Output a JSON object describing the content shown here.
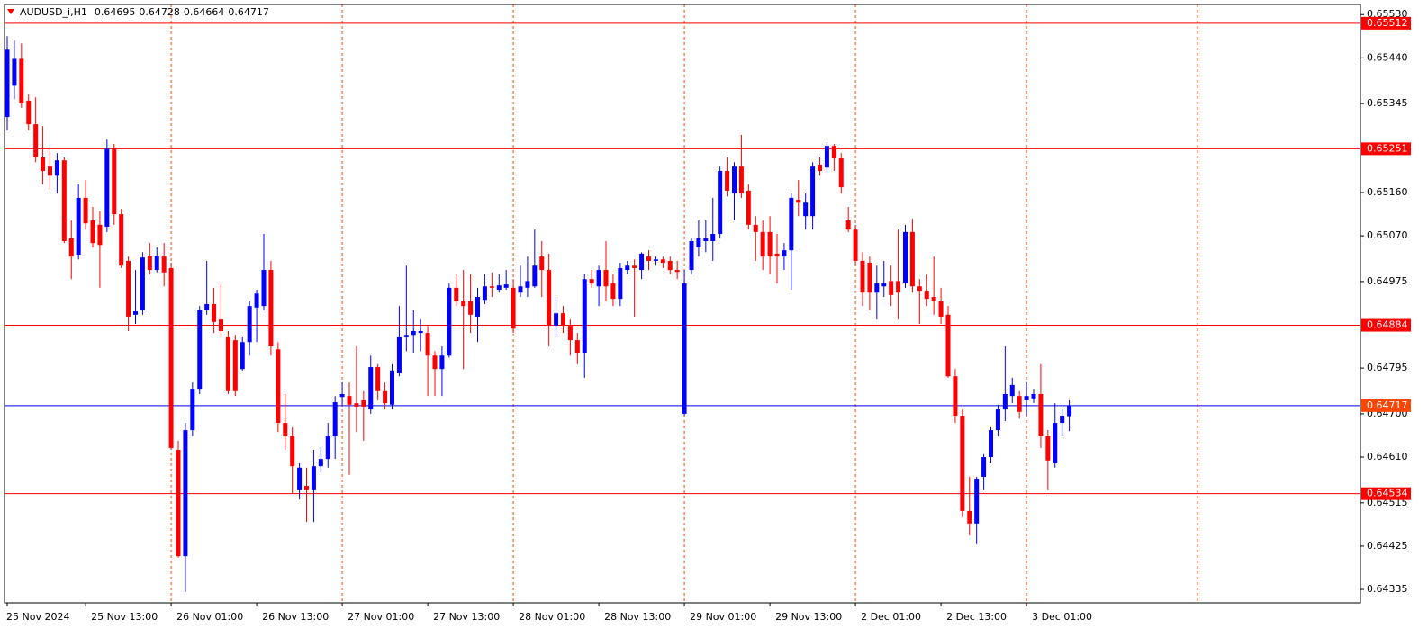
{
  "chart_data": {
    "type": "candlestick",
    "title": "AUDUSD_i,H1",
    "up_color": "#0000ff",
    "down_color": "#ff0000",
    "vgrid_color": "#ff4500",
    "categories": [
      "25 Nov 2024",
      null,
      null,
      null,
      null,
      null,
      null,
      null,
      null,
      null,
      null,
      "25 Nov 13:00",
      null,
      null,
      null,
      null,
      null,
      null,
      null,
      null,
      null,
      null,
      null,
      "26 Nov 01:00",
      null,
      null,
      null,
      null,
      null,
      null,
      null,
      null,
      null,
      null,
      null,
      "26 Nov 13:00",
      null,
      null,
      null,
      null,
      null,
      null,
      null,
      null,
      null,
      null,
      null,
      "27 Nov 01:00",
      null,
      null,
      null,
      null,
      null,
      null,
      null,
      null,
      null,
      null,
      null,
      "27 Nov 13:00",
      null,
      null,
      null,
      null,
      null,
      null,
      null,
      null,
      null,
      null,
      null,
      "28 Nov 01:00",
      null,
      null,
      null,
      null,
      null,
      null,
      null,
      null,
      null,
      null,
      null,
      "28 Nov 13:00",
      null,
      null,
      null,
      null,
      null,
      null,
      null,
      null,
      null,
      null,
      null,
      "29 Nov 01:00",
      null,
      null,
      null,
      null,
      null,
      null,
      null,
      null,
      null,
      null,
      null,
      "29 Nov 13:00",
      null,
      null,
      null,
      null,
      null,
      null,
      null,
      null,
      null,
      null,
      null,
      "2 Dec 01:00",
      null,
      null,
      null,
      null,
      null,
      null,
      null,
      null,
      null,
      null,
      null,
      "2 Dec 13:00",
      null,
      null,
      null,
      null,
      null,
      null,
      null,
      null,
      null,
      null,
      null,
      "3 Dec 01:00",
      null,
      null,
      null,
      null,
      null,
      null
    ],
    "open": [
      0.65317,
      0.65382,
      0.65438,
      0.65351,
      0.65302,
      0.65233,
      0.65214,
      0.65195,
      0.65227,
      0.65065,
      0.65031,
      0.65149,
      0.65102,
      0.65093,
      0.65089,
      0.65251,
      0.65115,
      0.65018,
      0.64906,
      0.64915,
      0.65029,
      0.64999,
      0.65027,
      0.65003,
      0.64625,
      0.64404,
      0.64666,
      0.64752,
      0.64915,
      0.64928,
      0.64896,
      0.64859,
      0.64853,
      0.64793,
      0.64849,
      0.64921,
      0.64924,
      0.64999,
      0.64834,
      0.64681,
      0.64653,
      0.64541,
      0.6455,
      0.64541,
      0.64591,
      0.64606,
      0.64653,
      0.64735,
      0.64737,
      0.64722,
      0.64728,
      0.64709,
      0.64797,
      0.64747,
      0.64719,
      0.64784,
      0.64859,
      0.64864,
      0.64868,
      0.64868,
      0.64821,
      0.64793,
      0.64821,
      0.64962,
      0.64934,
      0.64934,
      0.64902,
      0.64937,
      0.64965,
      0.64958,
      0.64962,
      0.64962,
      0.64952,
      0.64962,
      0.64965,
      0.65027,
      0.64999,
      0.64883,
      0.64909,
      0.64883,
      0.64853,
      0.64827,
      0.6498,
      0.64965,
      0.64999,
      0.64971,
      0.64939,
      0.64999,
      0.65008,
      0.64999,
      0.65027,
      0.65018,
      0.65021,
      0.65018,
      0.64999,
      0.647,
      0.64999,
      0.65046,
      0.65059,
      0.65059,
      0.65074,
      0.65205,
      0.65158,
      0.65214,
      0.65164,
      0.65093,
      0.65078,
      0.65078,
      0.65033,
      0.65027,
      0.6504,
      0.65145,
      0.65111,
      0.65111,
      0.65218,
      0.65212,
      0.65257,
      0.65231,
      0.65102,
      0.65083,
      0.65018,
      0.65014,
      0.64952,
      0.64965,
      0.64976,
      0.64976,
      0.64971,
      0.65078,
      0.64965,
      0.64956,
      0.64943,
      0.64934,
      0.64906,
      0.64778,
      0.64696,
      0.64498,
      0.64472,
      0.64569,
      0.6461,
      0.64666,
      0.64709,
      0.64737,
      0.64737,
      0.64728,
      0.64732,
      0.64741,
      0.64653,
      0.64597,
      0.64681,
      0.64695
    ],
    "high": [
      0.65485,
      0.65476,
      0.6547,
      0.65364,
      0.65358,
      0.65298,
      0.65251,
      0.65242,
      0.65233,
      0.65102,
      0.65177,
      0.65186,
      0.6513,
      0.65121,
      0.6527,
      0.65261,
      0.65126,
      0.65027,
      0.64999,
      0.65036,
      0.65055,
      0.65046,
      0.65055,
      0.65014,
      0.64644,
      0.64681,
      0.64765,
      0.64924,
      0.65018,
      0.64962,
      0.64971,
      0.64872,
      0.64864,
      0.64859,
      0.64934,
      0.64958,
      0.65074,
      0.65018,
      0.64849,
      0.64741,
      0.64672,
      0.64597,
      0.64588,
      0.64625,
      0.64631,
      0.64681,
      0.64737,
      0.64765,
      0.64765,
      0.6484,
      0.64747,
      0.64821,
      0.64803,
      0.64765,
      0.64803,
      0.64924,
      0.65008,
      0.64915,
      0.64896,
      0.64883,
      0.6483,
      0.6484,
      0.64971,
      0.6499,
      0.64999,
      0.6499,
      0.64962,
      0.6499,
      0.64994,
      0.6499,
      0.64999,
      0.6498,
      0.65008,
      0.65027,
      0.65083,
      0.65059,
      0.65033,
      0.64943,
      0.64924,
      0.64896,
      0.64868,
      0.6499,
      0.64999,
      0.65008,
      0.65059,
      0.6499,
      0.65014,
      0.65018,
      0.65021,
      0.65036,
      0.6504,
      0.65027,
      0.65027,
      0.65027,
      0.65018,
      0.64999,
      0.65065,
      0.65102,
      0.65102,
      0.65149,
      0.65214,
      0.65233,
      0.65223,
      0.6528,
      0.65177,
      0.65111,
      0.65102,
      0.65111,
      0.65074,
      0.65055,
      0.65158,
      0.65186,
      0.65158,
      0.65223,
      0.65233,
      0.65265,
      0.65261,
      0.65242,
      0.6513,
      0.65093,
      0.65036,
      0.65027,
      0.65008,
      0.65018,
      0.65008,
      0.65083,
      0.65093,
      0.65106,
      0.6498,
      0.6499,
      0.65027,
      0.64962,
      0.64924,
      0.64793,
      0.64709,
      0.64569,
      0.64569,
      0.64616,
      0.64672,
      0.64719,
      0.6484,
      0.64775,
      0.64747,
      0.64765,
      0.64752,
      0.64803,
      0.64666,
      0.64722,
      0.64709,
      0.64728
    ],
    "low": [
      0.65289,
      0.65354,
      0.65336,
      0.65289,
      0.65223,
      0.65177,
      0.65167,
      0.65158,
      0.65055,
      0.6498,
      0.65021,
      0.65083,
      0.65046,
      0.64962,
      0.65078,
      0.65093,
      0.65003,
      0.64872,
      0.64887,
      0.64906,
      0.6499,
      0.64994,
      0.64965,
      0.64625,
      0.64401,
      0.6433,
      0.64653,
      0.64741,
      0.64906,
      0.64868,
      0.64859,
      0.64741,
      0.64737,
      0.6479,
      0.64821,
      0.64849,
      0.64915,
      0.64821,
      0.64662,
      0.64625,
      0.64535,
      0.64522,
      0.64475,
      0.64475,
      0.64578,
      0.64588,
      0.64606,
      0.64719,
      0.64573,
      0.64662,
      0.64644,
      0.647,
      0.64728,
      0.64709,
      0.64709,
      0.64778,
      0.6483,
      0.64827,
      0.6483,
      0.64737,
      0.64737,
      0.64737,
      0.64817,
      0.64924,
      0.64793,
      0.64868,
      0.64849,
      0.64928,
      0.64943,
      0.64952,
      0.64958,
      0.64868,
      0.64943,
      0.64943,
      0.64962,
      0.64943,
      0.6484,
      0.64859,
      0.64868,
      0.64821,
      0.64803,
      0.64775,
      0.64962,
      0.64924,
      0.64934,
      0.64924,
      0.64924,
      0.6499,
      0.64902,
      0.6498,
      0.64999,
      0.65008,
      0.65003,
      0.6499,
      0.6498,
      0.64696,
      0.6499,
      0.65027,
      0.65036,
      0.65018,
      0.65065,
      0.65152,
      0.65102,
      0.65149,
      0.65083,
      0.65018,
      0.64999,
      0.6499,
      0.64971,
      0.64999,
      0.64958,
      0.65111,
      0.65083,
      0.65083,
      0.65195,
      0.65201,
      0.65205,
      0.65158,
      0.65078,
      0.65008,
      0.64924,
      0.64915,
      0.64896,
      0.64943,
      0.64924,
      0.64896,
      0.64962,
      0.64952,
      0.64887,
      0.64924,
      0.64906,
      0.64887,
      0.64775,
      0.64681,
      0.64485,
      0.64447,
      0.64429,
      0.64541,
      0.64597,
      0.64653,
      0.64685,
      0.64722,
      0.6469,
      0.64696,
      0.64722,
      0.64629,
      0.64541,
      0.64588,
      0.64653,
      0.64664
    ],
    "close": [
      0.65457,
      0.65438,
      0.65345,
      0.65302,
      0.65233,
      0.65205,
      0.65195,
      0.65227,
      0.65059,
      0.65027,
      0.65149,
      0.65096,
      0.65055,
      0.65051,
      0.65251,
      0.65115,
      0.65008,
      0.64902,
      0.64913,
      0.65025,
      0.64999,
      0.65029,
      0.64994,
      0.64629,
      0.64404,
      0.64666,
      0.64752,
      0.64915,
      0.64928,
      0.64891,
      0.64872,
      0.64747,
      0.64747,
      0.64849,
      0.64924,
      0.6495,
      0.64999,
      0.6484,
      0.64681,
      0.64653,
      0.64591,
      0.64588,
      0.64541,
      0.64591,
      0.64606,
      0.64653,
      0.64724,
      0.64741,
      0.64719,
      0.64715,
      0.64715,
      0.64797,
      0.64747,
      0.64722,
      0.6479,
      0.64859,
      0.64864,
      0.64872,
      0.64872,
      0.64821,
      0.64793,
      0.64821,
      0.64962,
      0.64934,
      0.64924,
      0.64906,
      0.64943,
      0.64965,
      0.64962,
      0.64967,
      0.64969,
      0.64877,
      0.64965,
      0.64976,
      0.65008,
      0.64999,
      0.64883,
      0.64909,
      0.64883,
      0.64853,
      0.64827,
      0.6498,
      0.64971,
      0.64999,
      0.64965,
      0.64939,
      0.65003,
      0.65008,
      0.65003,
      0.65033,
      0.65018,
      0.65021,
      0.65014,
      0.64999,
      0.64995,
      0.64971,
      0.65059,
      0.65065,
      0.65065,
      0.65074,
      0.65205,
      0.65164,
      0.65214,
      0.65158,
      0.65093,
      0.65078,
      0.65027,
      0.65027,
      0.65027,
      0.6504,
      0.65149,
      0.65139,
      0.65139,
      0.65214,
      0.65205,
      0.65257,
      0.65231,
      0.65171,
      0.65083,
      0.65018,
      0.64952,
      0.64952,
      0.64971,
      0.64971,
      0.64947,
      0.64952,
      0.65078,
      0.64965,
      0.64956,
      0.64939,
      0.64934,
      0.64902,
      0.64778,
      0.64696,
      0.64498,
      0.64472,
      0.64565,
      0.6461,
      0.64666,
      0.64709,
      0.64741,
      0.6476,
      0.64704,
      0.64737,
      0.64741,
      0.64653,
      0.64603,
      0.64681,
      0.64696,
      0.64717
    ],
    "ylim": [
      0.64307,
      0.65551
    ],
    "yticks": [
      {
        "value": 0.6553,
        "label": "0.65530"
      },
      {
        "value": 0.6544,
        "label": "0.65440"
      },
      0.65345,
      {
        "value": 0.6516,
        "label": "0.65160"
      },
      {
        "value": 0.6507,
        "label": "0.65070"
      },
      0.64975,
      0.64795,
      {
        "value": 0.647,
        "label": "0.64700"
      },
      {
        "value": 0.6461,
        "label": "0.64610"
      },
      0.64515,
      0.64425,
      0.64335
    ],
    "price_lines": [
      {
        "value": 0.65512,
        "color": "#ff0000",
        "label_color": "#ff0000"
      },
      {
        "value": 0.65251,
        "color": "#ff0000",
        "label_color": "#ff0000"
      },
      {
        "value": 0.64884,
        "color": "#ff0000",
        "label_color": "#ff0000"
      },
      {
        "value": 0.64534,
        "color": "#ff0000",
        "label_color": "#ff0000"
      },
      {
        "value": 0.64717,
        "color": "#0000ff",
        "label_color": "#ff4500"
      }
    ]
  }
}
